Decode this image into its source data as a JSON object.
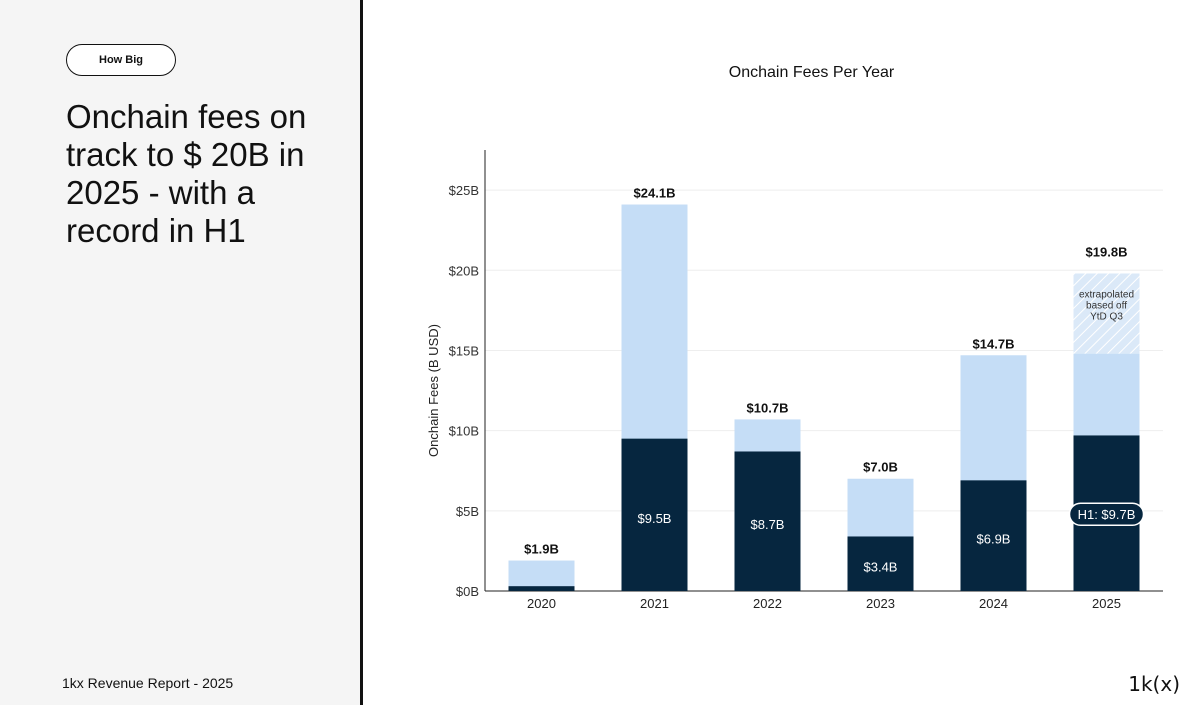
{
  "tag_label": "How Big",
  "headline": "Onchain fees on track to $ 20B in 2025 - with a record in H1",
  "footer": "1kx Revenue Report  - 2025",
  "logo": "1k(x)",
  "colors": {
    "h1": "#06263f",
    "total": "#c5ddf6",
    "hatch": "#dbe9f8"
  },
  "chart_data": {
    "type": "bar",
    "title": "Onchain Fees Per Year",
    "ylabel": "Onchain Fees (B USD)",
    "xlabel": "",
    "ylim": [
      0,
      27.5
    ],
    "yticks": [
      0,
      5,
      10,
      15,
      20,
      25
    ],
    "ytick_labels": [
      "$0B",
      "$5B",
      "$10B",
      "$15B",
      "$20B",
      "$25B"
    ],
    "categories": [
      "2020",
      "2021",
      "2022",
      "2023",
      "2024",
      "2025"
    ],
    "series": [
      {
        "values": [
          0.3,
          9.5,
          8.7,
          3.4,
          6.9,
          9.7
        ],
        "labels": [
          "",
          "$9.5B",
          "$8.7B",
          "$3.4B",
          "$6.9B",
          "H1: $9.7B"
        ]
      },
      {
        "values": [
          1.9,
          24.1,
          10.7,
          7.0,
          14.7,
          14.8
        ]
      },
      {
        "values": [
          null,
          null,
          null,
          null,
          null,
          19.8
        ]
      }
    ],
    "total_labels": [
      "$1.9B",
      "$24.1B",
      "$10.7B",
      "$7.0B",
      "$14.7B",
      "$19.8B"
    ],
    "annotation": {
      "category": "2025",
      "lines": [
        "extrapolated",
        "based off",
        "YtD Q3"
      ]
    }
  }
}
